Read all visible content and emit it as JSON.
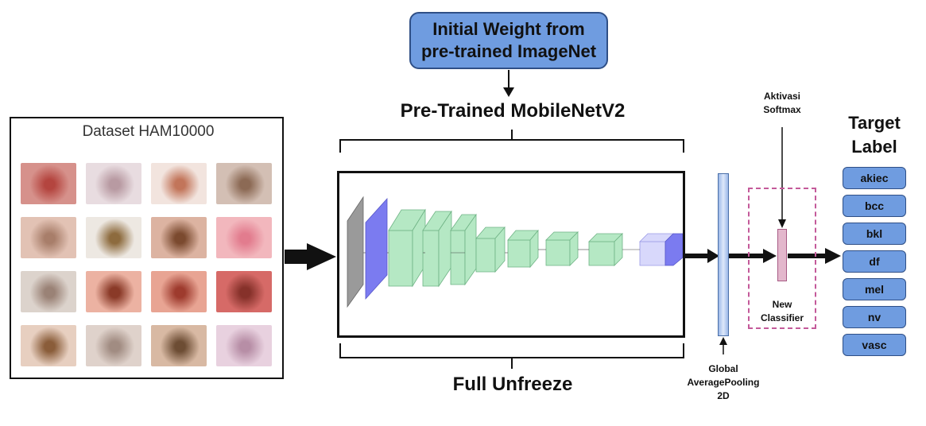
{
  "initial_weight": {
    "line1": "Initial Weight from",
    "line2": "pre-trained ImageNet"
  },
  "pretrained_title": "Pre-Trained MobileNetV2",
  "full_unfreeze": "Full Unfreeze",
  "dataset_title": "Dataset HAM10000",
  "dataset_thumbnails": [
    {
      "colors": [
        "#d6918b",
        "#b4453f"
      ]
    },
    {
      "colors": [
        "#e8dce0",
        "#b89aa2"
      ]
    },
    {
      "colors": [
        "#f2e4de",
        "#c2755a"
      ]
    },
    {
      "colors": [
        "#d3bfb4",
        "#8c6a55"
      ]
    },
    {
      "colors": [
        "#e2c2b4",
        "#a87e6a"
      ]
    },
    {
      "colors": [
        "#ede8e2",
        "#8d6b3e"
      ]
    },
    {
      "colors": [
        "#dcb3a1",
        "#7b4a2f"
      ]
    },
    {
      "colors": [
        "#f2b7bd",
        "#e27c8e"
      ]
    },
    {
      "colors": [
        "#dcd3cc",
        "#9a8276"
      ]
    },
    {
      "colors": [
        "#ecb2a2",
        "#8a3a28"
      ]
    },
    {
      "colors": [
        "#e8a493",
        "#9e3b2e"
      ]
    },
    {
      "colors": [
        "#d66a67",
        "#86312a"
      ]
    },
    {
      "colors": [
        "#e7cfc0",
        "#8a5d3a"
      ]
    },
    {
      "colors": [
        "#dfd2cb",
        "#a18c82"
      ]
    },
    {
      "colors": [
        "#d8b9a3",
        "#6d4d34"
      ]
    },
    {
      "colors": [
        "#e8d1df",
        "#b78ea6"
      ]
    }
  ],
  "gap_label": {
    "line1": "Global",
    "line2": "AveragePooling",
    "line3": "2D"
  },
  "activation_label": {
    "line1": "Aktivasi",
    "line2": "Softmax"
  },
  "classifier_label": {
    "line1": "New",
    "line2": "Classifier"
  },
  "target_title": {
    "line1": "Target",
    "line2": "Label"
  },
  "target_labels": [
    "akiec",
    "bcc",
    "bkl",
    "df",
    "mel",
    "nv",
    "vasc"
  ],
  "colors": {
    "box_blue": "#6f9ce0",
    "layer_green": "#b5e8c4",
    "layer_blue": "#7b7bf0",
    "layer_gray": "#9a9a9a",
    "classifier_pink": "#c45a9a"
  }
}
